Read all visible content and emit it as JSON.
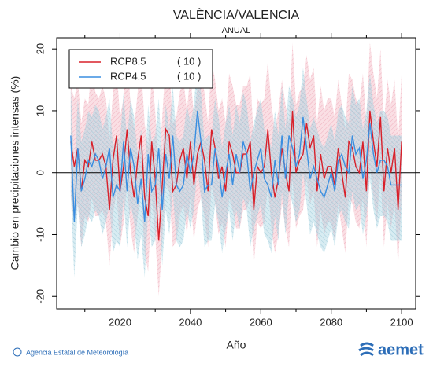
{
  "chart_data": {
    "type": "line",
    "title": "VALÈNCIA/VALENCIA",
    "subtitle": "ANUAL",
    "y_label": "Cambio en precipitaciones intensas (%)",
    "x_label": "Año",
    "footer": "Agencia Estatal de Meteorología",
    "logo": "aemet",
    "xlim": [
      2002,
      2104
    ],
    "ylim": [
      -22,
      21.8
    ],
    "xticks": [
      2020,
      2040,
      2060,
      2080,
      2100
    ],
    "xminor_ticks": [
      2010,
      2030,
      2050,
      2070,
      2090
    ],
    "yticks": [
      20,
      10,
      0,
      -10,
      -20
    ],
    "reference_line": 0,
    "legend": "upper left",
    "x": [
      2006,
      2007,
      2008,
      2009,
      2010,
      2011,
      2012,
      2013,
      2014,
      2015,
      2016,
      2017,
      2018,
      2019,
      2020,
      2021,
      2022,
      2023,
      2024,
      2025,
      2026,
      2027,
      2028,
      2029,
      2030,
      2031,
      2032,
      2033,
      2034,
      2035,
      2036,
      2037,
      2038,
      2039,
      2040,
      2041,
      2042,
      2043,
      2044,
      2045,
      2046,
      2047,
      2048,
      2049,
      2050,
      2051,
      2052,
      2053,
      2054,
      2055,
      2056,
      2057,
      2058,
      2059,
      2060,
      2061,
      2062,
      2063,
      2064,
      2065,
      2066,
      2067,
      2068,
      2069,
      2070,
      2071,
      2072,
      2073,
      2074,
      2075,
      2076,
      2077,
      2078,
      2079,
      2080,
      2081,
      2082,
      2083,
      2084,
      2085,
      2086,
      2087,
      2088,
      2089,
      2090,
      2091,
      2092,
      2093,
      2094,
      2095,
      2096,
      2097,
      2098,
      2099,
      2100
    ],
    "series": [
      {
        "name": "RCP8.5",
        "count_label": "( 10 )",
        "color": "#d8202a",
        "band_color": "#f4b8c4",
        "values": [
          5,
          1,
          4,
          -3,
          2,
          1,
          5,
          2,
          2,
          3,
          1,
          -6,
          2,
          6,
          -3,
          1,
          7,
          0,
          -4,
          2,
          6,
          -4,
          -7,
          5,
          -1,
          -11,
          -2,
          7,
          6,
          -3,
          -2,
          2,
          4,
          -1,
          5,
          -2,
          3,
          5,
          2,
          -3,
          7,
          4,
          -1,
          1,
          -3,
          5,
          3,
          0,
          0,
          3,
          3,
          5,
          -6,
          1,
          0,
          1,
          7,
          0,
          -4,
          -1,
          4,
          0,
          -3,
          10,
          0,
          2,
          3,
          8,
          4,
          6,
          -3,
          3,
          -1,
          1,
          1,
          -2,
          4,
          0,
          -4,
          5,
          4,
          1,
          0,
          5,
          -3,
          10,
          5,
          1,
          9,
          -3,
          4,
          0,
          4,
          -6,
          5
        ],
        "band_high": [
          14,
          12,
          15,
          8,
          12,
          11,
          18,
          13,
          12,
          14,
          12,
          5,
          13,
          17,
          9,
          12,
          19,
          11,
          7,
          13,
          17,
          8,
          4,
          16,
          10,
          0,
          9,
          18,
          17,
          8,
          9,
          13,
          15,
          10,
          16,
          9,
          14,
          16,
          13,
          8,
          18,
          15,
          10,
          12,
          8,
          16,
          14,
          11,
          11,
          14,
          14,
          16,
          5,
          12,
          11,
          12,
          18,
          11,
          7,
          10,
          15,
          11,
          8,
          21,
          11,
          13,
          14,
          19,
          15,
          17,
          8,
          14,
          10,
          12,
          12,
          9,
          15,
          11,
          7,
          16,
          15,
          12,
          11,
          16,
          8,
          21,
          16,
          12,
          20,
          8,
          15,
          11,
          15,
          5,
          16
        ],
        "band_low": [
          -4,
          -8,
          -5,
          -12,
          -7,
          -8,
          -4,
          -7,
          -7,
          -6,
          -8,
          -15,
          -7,
          -3,
          -12,
          -8,
          -2,
          -9,
          -13,
          -7,
          -3,
          -13,
          -16,
          -4,
          -10,
          -20,
          -11,
          -2,
          -3,
          -12,
          -11,
          -7,
          -5,
          -10,
          -4,
          -11,
          -6,
          -4,
          -7,
          -12,
          -2,
          -5,
          -10,
          -8,
          -12,
          -4,
          -6,
          -9,
          -9,
          -6,
          -6,
          -4,
          -15,
          -8,
          -9,
          -8,
          -2,
          -9,
          -13,
          -10,
          -5,
          -9,
          -12,
          -1,
          -9,
          -7,
          -6,
          -1,
          -5,
          -3,
          -12,
          -6,
          -10,
          -8,
          -8,
          -11,
          -5,
          -9,
          -13,
          -4,
          -5,
          -8,
          -9,
          -4,
          -12,
          1,
          -4,
          -8,
          0,
          -12,
          -5,
          -9,
          -5,
          -15,
          -4
        ]
      },
      {
        "name": "RCP4.5",
        "count_label": "( 10 )",
        "color": "#3a8ee0",
        "band_color": "#a8d4e2",
        "values": [
          6,
          -8,
          4,
          -3,
          -1,
          2,
          1,
          3,
          2,
          -1,
          1,
          4,
          -4,
          -2,
          -3,
          5,
          -3,
          4,
          1,
          -5,
          -1,
          -8,
          3,
          -3,
          -2,
          4,
          -6,
          3,
          -1,
          6,
          -2,
          -3,
          -2,
          3,
          0,
          3,
          10,
          5,
          -3,
          -2,
          -2,
          4,
          1,
          -4,
          0,
          3,
          -2,
          3,
          0,
          5,
          3,
          -3,
          0,
          2,
          4,
          -1,
          -2,
          -4,
          2,
          -2,
          6,
          -1,
          6,
          4,
          1,
          3,
          9,
          4,
          -1,
          1,
          -1,
          -3,
          -4,
          -2,
          0,
          -3,
          2,
          3,
          1,
          0,
          6,
          3,
          4,
          -1,
          2,
          8,
          3,
          0,
          2,
          2,
          1,
          -2,
          -2,
          -2,
          -2
        ],
        "band_high": [
          14,
          0,
          12,
          5,
          7,
          10,
          9,
          11,
          10,
          7,
          9,
          12,
          4,
          6,
          5,
          13,
          5,
          12,
          9,
          3,
          7,
          0,
          11,
          5,
          6,
          12,
          2,
          11,
          7,
          14,
          6,
          5,
          6,
          11,
          8,
          11,
          18,
          13,
          5,
          6,
          6,
          12,
          9,
          4,
          8,
          11,
          6,
          11,
          8,
          13,
          11,
          5,
          8,
          10,
          12,
          7,
          6,
          4,
          10,
          6,
          14,
          7,
          14,
          12,
          9,
          11,
          17,
          12,
          7,
          9,
          7,
          5,
          4,
          6,
          8,
          5,
          10,
          11,
          9,
          8,
          14,
          11,
          12,
          7,
          10,
          16,
          11,
          8,
          10,
          10,
          9,
          6,
          6,
          6,
          6
        ],
        "band_low": [
          -3,
          -17,
          -5,
          -12,
          -10,
          -7,
          -8,
          -6,
          -7,
          -10,
          -8,
          -5,
          -13,
          -11,
          -12,
          -4,
          -12,
          -5,
          -8,
          -14,
          -10,
          -17,
          -6,
          -12,
          -11,
          -5,
          -15,
          -6,
          -10,
          -3,
          -11,
          -12,
          -11,
          -6,
          -9,
          -6,
          1,
          -4,
          -12,
          -11,
          -11,
          -5,
          -8,
          -13,
          -9,
          -6,
          -11,
          -6,
          -9,
          -4,
          -6,
          -12,
          -9,
          -7,
          -5,
          -10,
          -11,
          -13,
          -7,
          -11,
          -3,
          -10,
          -3,
          -5,
          -8,
          -6,
          0,
          -5,
          -10,
          -8,
          -10,
          -12,
          -13,
          -11,
          -9,
          -12,
          -7,
          -6,
          -8,
          -9,
          -3,
          -6,
          -5,
          -10,
          -7,
          -1,
          -6,
          -9,
          -7,
          -7,
          -8,
          -11,
          -11,
          -11,
          -11
        ]
      }
    ]
  }
}
